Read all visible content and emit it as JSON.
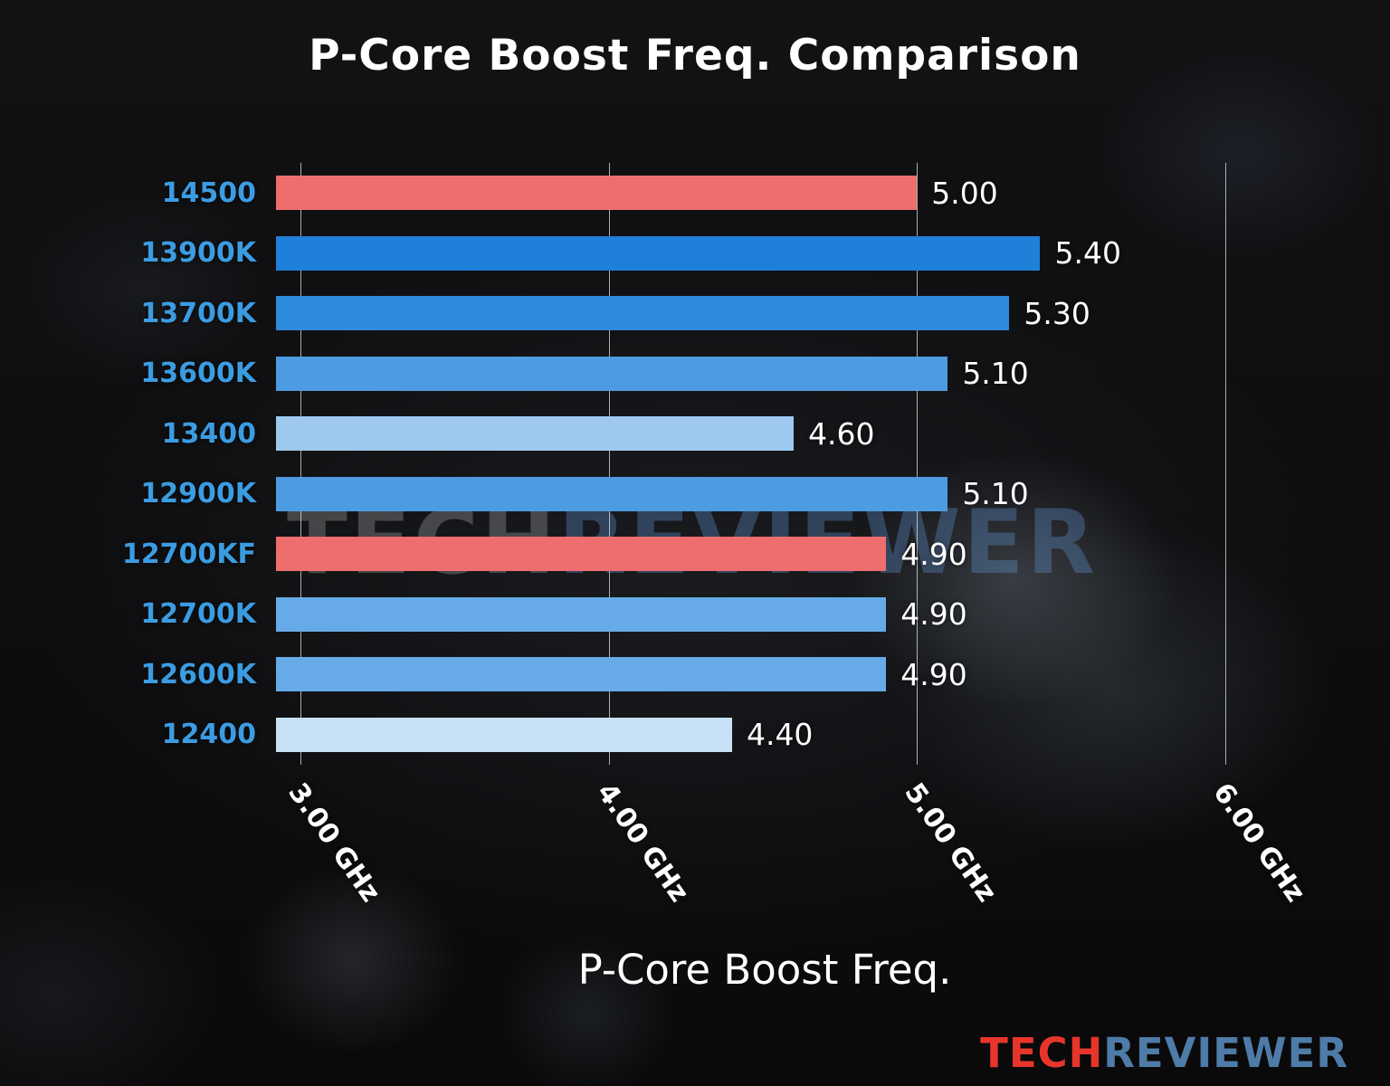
{
  "watermark": {
    "tech": "TECH",
    "reviewer": "REVIEWER"
  },
  "logo": {
    "tech": "TECH",
    "reviewer": "REVIEWER",
    "tech_color": "#e8352c",
    "reviewer_color": "#4e7ba7"
  },
  "chart_data": {
    "type": "bar",
    "orientation": "horizontal",
    "title": "P-Core Boost Freq. Comparison",
    "xlabel": "P-Core Boost Freq.",
    "categories": [
      "14500",
      "13900K",
      "13700K",
      "13600K",
      "13400",
      "12900K",
      "12700KF",
      "12700K",
      "12600K",
      "12400"
    ],
    "values": [
      5.0,
      5.4,
      5.3,
      5.1,
      4.6,
      5.1,
      4.9,
      4.9,
      4.9,
      4.4
    ],
    "value_labels": [
      "5.00",
      "5.40",
      "5.30",
      "5.10",
      "4.60",
      "5.10",
      "4.90",
      "4.90",
      "4.90",
      "4.40"
    ],
    "bar_colors": [
      "#ee6e6e",
      "#1e80d8",
      "#2e8adc",
      "#4d9ce2",
      "#9dc9ef",
      "#4d9ce2",
      "#ee6e6e",
      "#66abe8",
      "#66abe8",
      "#c9e1f7"
    ],
    "highlight_color": "#ee6e6e",
    "category_label_color": "#3c9ce2",
    "value_label_color": "#ffffff",
    "xticks": [
      3,
      4,
      5,
      6
    ],
    "xtick_labels": [
      "3.00 GHz",
      "4.00 GHz",
      "5.00 GHz",
      "6.00 GHz"
    ],
    "xlim": [
      2.92,
      6.4
    ],
    "grid": true,
    "legend": false
  }
}
